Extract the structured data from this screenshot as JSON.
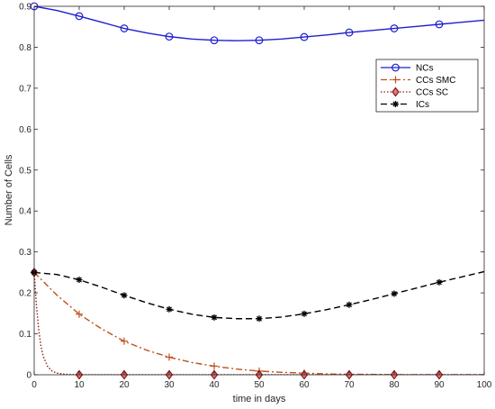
{
  "chart_data": {
    "type": "line",
    "xlabel": "time in days",
    "ylabel": "Number of Cells",
    "xlim": [
      0,
      100
    ],
    "ylim": [
      0,
      0.9
    ],
    "x_ticks": [
      "0",
      "10",
      "20",
      "30",
      "40",
      "50",
      "60",
      "70",
      "80",
      "90",
      "100"
    ],
    "y_ticks": [
      "0",
      "0.1",
      "0.2",
      "0.3",
      "0.4",
      "0.5",
      "0.6",
      "0.7",
      "0.8",
      "0.9"
    ],
    "grid": false,
    "legend_position": "top-right",
    "series": [
      {
        "name": "NCs",
        "color": "#1f1fd0",
        "line_style": "solid",
        "marker": "circle",
        "x": [
          0,
          5,
          10,
          15,
          20,
          25,
          30,
          35,
          40,
          45,
          50,
          55,
          60,
          65,
          70,
          75,
          80,
          85,
          90,
          95,
          100
        ],
        "y": [
          0.9,
          0.89,
          0.876,
          0.861,
          0.846,
          0.835,
          0.826,
          0.82,
          0.817,
          0.816,
          0.817,
          0.82,
          0.825,
          0.83,
          0.836,
          0.841,
          0.846,
          0.851,
          0.856,
          0.861,
          0.866
        ]
      },
      {
        "name": "CCs SMC",
        "color": "#c0501b",
        "line_style": "dashdot",
        "marker": "plus",
        "x": [
          0,
          5,
          10,
          15,
          20,
          25,
          30,
          35,
          40,
          45,
          50,
          55,
          60,
          65,
          70,
          75,
          80,
          85,
          90,
          95,
          100
        ],
        "y": [
          0.25,
          0.195,
          0.148,
          0.112,
          0.082,
          0.06,
          0.043,
          0.03,
          0.021,
          0.014,
          0.009,
          0.006,
          0.004,
          0.002,
          0.001,
          0.001,
          0.0,
          0.0,
          0.0,
          0.0,
          0.0
        ]
      },
      {
        "name": "CCs SC",
        "color": "#8b1a1a",
        "line_style": "dotted",
        "marker": "diamond",
        "x": [
          0,
          0.5,
          1,
          1.5,
          2,
          3,
          4,
          5,
          7,
          10,
          20,
          30,
          40,
          50,
          60,
          70,
          80,
          90,
          100
        ],
        "y": [
          0.25,
          0.17,
          0.11,
          0.07,
          0.045,
          0.02,
          0.009,
          0.004,
          0.001,
          0.0,
          0.0,
          0.0,
          0.0,
          0.0,
          0.0,
          0.0,
          0.0,
          0.0,
          0.0
        ]
      },
      {
        "name": "ICs",
        "color": "#000000",
        "line_style": "dashed",
        "marker": "star",
        "x": [
          0,
          5,
          10,
          15,
          20,
          25,
          30,
          35,
          40,
          45,
          50,
          55,
          60,
          65,
          70,
          75,
          80,
          85,
          90,
          95,
          100
        ],
        "y": [
          0.25,
          0.245,
          0.232,
          0.214,
          0.194,
          0.176,
          0.16,
          0.148,
          0.14,
          0.137,
          0.137,
          0.141,
          0.149,
          0.159,
          0.171,
          0.184,
          0.198,
          0.212,
          0.226,
          0.239,
          0.252
        ]
      }
    ],
    "markers_x": [
      0,
      10,
      20,
      30,
      40,
      50,
      60,
      70,
      80,
      90
    ]
  }
}
